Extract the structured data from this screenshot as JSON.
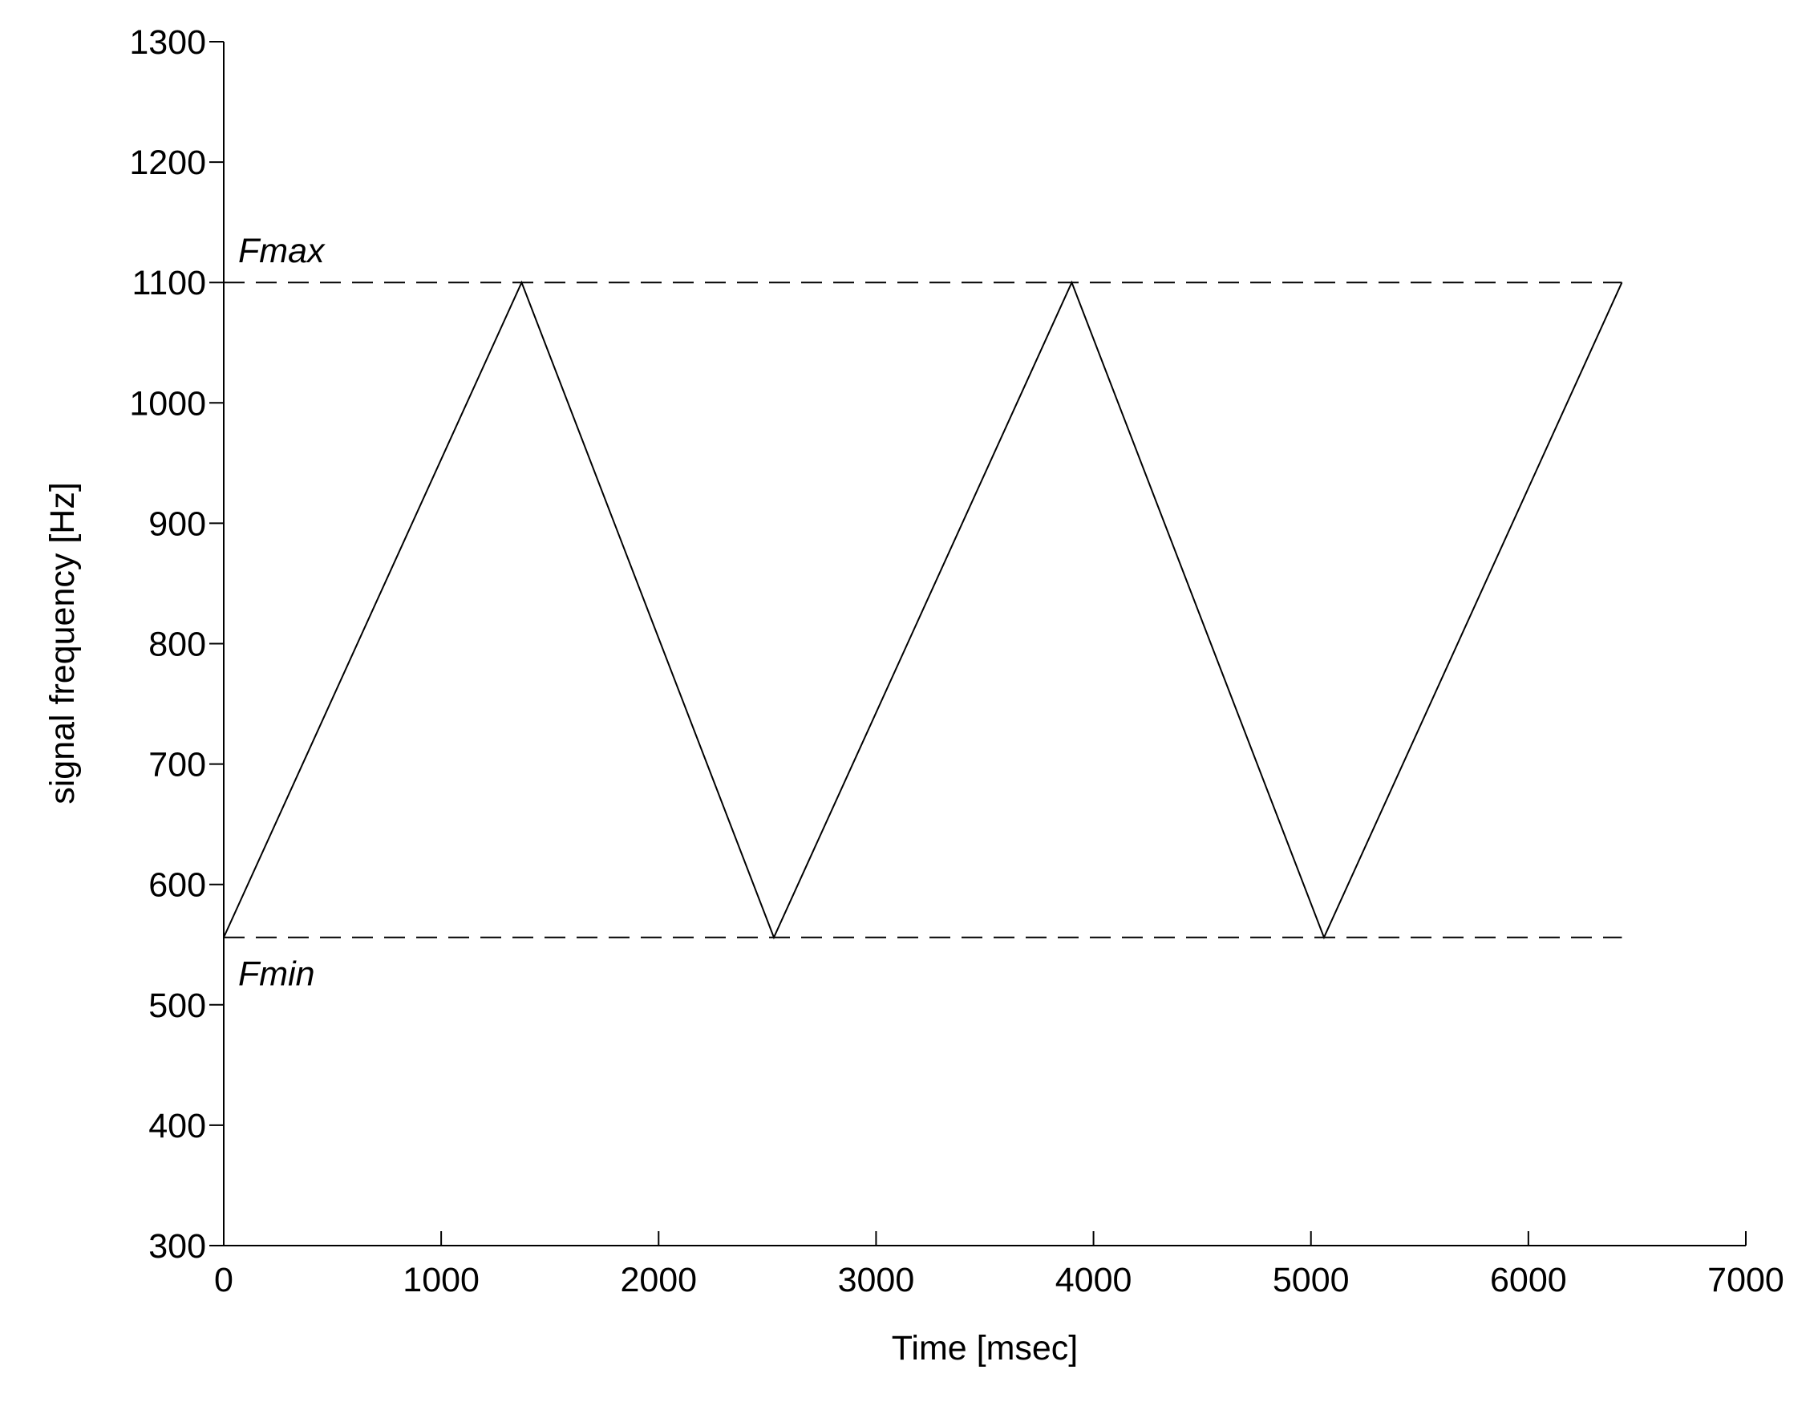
{
  "chart_data": {
    "type": "line",
    "x_label": "Time [msec]",
    "y_label": "signal frequency [Hz]",
    "series": [
      {
        "color": "#000000",
        "x": [
          0,
          1370,
          2530,
          3900,
          5060,
          6430
        ],
        "values": [
          556,
          1100,
          556,
          1100,
          556,
          1100
        ]
      }
    ],
    "reference_lines": [
      {
        "label": "Fmax",
        "value": 1100,
        "x": [
          0,
          6430
        ],
        "position": "above"
      },
      {
        "label": "Fmin",
        "value": 556,
        "x": [
          0,
          6430
        ],
        "position": "below"
      }
    ],
    "annotation_color": "#4a1c1c",
    "xlim": [
      0,
      7000
    ],
    "xticks": [
      0,
      1000,
      2000,
      3000,
      4000,
      5000,
      6000,
      7000
    ],
    "ylim": [
      300,
      1300
    ],
    "yticks": [
      300,
      400,
      500,
      600,
      700,
      800,
      900,
      1000,
      1100,
      1200,
      1300
    ],
    "grid": false
  }
}
